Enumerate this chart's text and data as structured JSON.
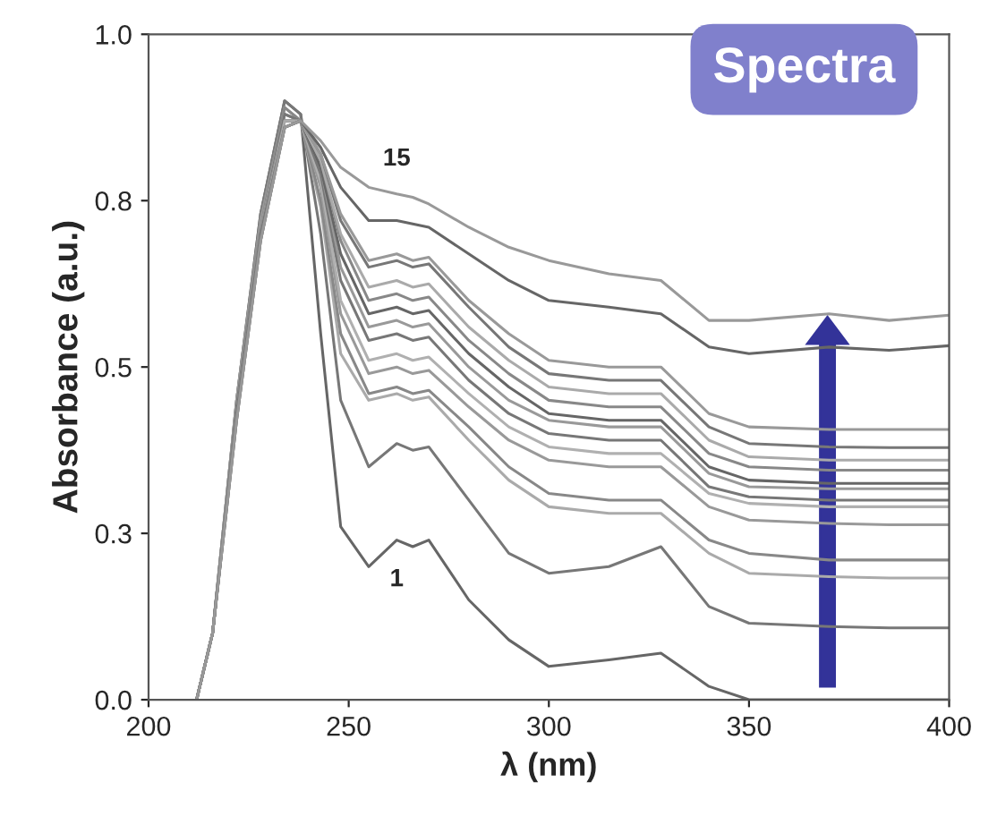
{
  "chart_data": {
    "type": "line",
    "xlabel": "λ (nm)",
    "ylabel": "Absorbance (a.u.)",
    "xlim": [
      200,
      400
    ],
    "xticks": [
      200,
      250,
      300,
      350,
      400
    ],
    "ylim": [
      0,
      1.0
    ],
    "yticks": [
      {
        "value": 0,
        "label": "0.0"
      },
      {
        "value": 0.25,
        "label": "0.3"
      },
      {
        "value": 0.5,
        "label": "0.5"
      },
      {
        "value": 0.75,
        "label": "0.8"
      },
      {
        "value": 1.0,
        "label": "1.0"
      }
    ],
    "grid": false,
    "legend": false,
    "marker": "none",
    "line_style": "solid",
    "x": [
      212,
      216,
      222,
      228,
      234,
      238,
      243,
      248,
      255,
      262,
      266,
      270,
      280,
      290,
      300,
      315,
      328,
      340,
      350,
      370,
      385,
      400
    ],
    "series": [
      {
        "color": "#666666",
        "values": [
          0,
          0.1,
          0.45,
          0.73,
          0.9,
          0.88,
          0.55,
          0.26,
          0.2,
          0.24,
          0.23,
          0.24,
          0.15,
          0.09,
          0.05,
          0.06,
          0.07,
          0.02,
          0.0,
          0.0,
          0.0,
          0.0
        ]
      },
      {
        "color": "#777777",
        "values": [
          0,
          0.1,
          0.45,
          0.73,
          0.9,
          0.88,
          0.7,
          0.45,
          0.35,
          0.385,
          0.375,
          0.38,
          0.3,
          0.22,
          0.19,
          0.2,
          0.23,
          0.14,
          0.115,
          0.11,
          0.108,
          0.108
        ]
      },
      {
        "color": "#aaaaaa",
        "values": [
          0,
          0.1,
          0.45,
          0.72,
          0.89,
          0.87,
          0.74,
          0.52,
          0.45,
          0.46,
          0.45,
          0.455,
          0.39,
          0.33,
          0.29,
          0.28,
          0.28,
          0.22,
          0.19,
          0.185,
          0.183,
          0.183
        ]
      },
      {
        "color": "#888888",
        "values": [
          0,
          0.1,
          0.44,
          0.72,
          0.89,
          0.87,
          0.75,
          0.55,
          0.46,
          0.47,
          0.46,
          0.465,
          0.41,
          0.35,
          0.31,
          0.3,
          0.3,
          0.24,
          0.22,
          0.21,
          0.21,
          0.21
        ]
      },
      {
        "color": "#999999",
        "values": [
          0,
          0.1,
          0.44,
          0.72,
          0.88,
          0.87,
          0.77,
          0.58,
          0.49,
          0.5,
          0.49,
          0.495,
          0.44,
          0.39,
          0.36,
          0.35,
          0.35,
          0.29,
          0.27,
          0.265,
          0.263,
          0.263
        ]
      },
      {
        "color": "#b0b0b0",
        "values": [
          0,
          0.1,
          0.44,
          0.71,
          0.88,
          0.87,
          0.78,
          0.6,
          0.51,
          0.52,
          0.51,
          0.515,
          0.46,
          0.41,
          0.38,
          0.37,
          0.37,
          0.31,
          0.295,
          0.29,
          0.29,
          0.29
        ]
      },
      {
        "color": "#777777",
        "values": [
          0,
          0.1,
          0.44,
          0.71,
          0.88,
          0.87,
          0.79,
          0.63,
          0.54,
          0.55,
          0.54,
          0.545,
          0.48,
          0.43,
          0.4,
          0.39,
          0.39,
          0.32,
          0.305,
          0.3,
          0.3,
          0.3
        ]
      },
      {
        "color": "#999999",
        "values": [
          0,
          0.1,
          0.43,
          0.71,
          0.87,
          0.87,
          0.8,
          0.65,
          0.56,
          0.57,
          0.56,
          0.565,
          0.5,
          0.45,
          0.42,
          0.41,
          0.41,
          0.34,
          0.32,
          0.317,
          0.317,
          0.317
        ]
      },
      {
        "color": "#666666",
        "values": [
          0,
          0.1,
          0.43,
          0.7,
          0.87,
          0.87,
          0.8,
          0.67,
          0.58,
          0.59,
          0.58,
          0.585,
          0.52,
          0.47,
          0.43,
          0.42,
          0.42,
          0.35,
          0.33,
          0.325,
          0.325,
          0.325
        ]
      },
      {
        "color": "#888888",
        "values": [
          0,
          0.1,
          0.43,
          0.7,
          0.87,
          0.87,
          0.81,
          0.69,
          0.6,
          0.61,
          0.6,
          0.605,
          0.54,
          0.49,
          0.45,
          0.44,
          0.44,
          0.37,
          0.35,
          0.345,
          0.345,
          0.345
        ]
      },
      {
        "color": "#aaaaaa",
        "values": [
          0,
          0.1,
          0.43,
          0.7,
          0.87,
          0.87,
          0.81,
          0.7,
          0.62,
          0.63,
          0.62,
          0.625,
          0.56,
          0.51,
          0.47,
          0.46,
          0.46,
          0.39,
          0.365,
          0.36,
          0.36,
          0.36
        ]
      },
      {
        "color": "#777777",
        "values": [
          0,
          0.1,
          0.43,
          0.7,
          0.86,
          0.87,
          0.82,
          0.72,
          0.65,
          0.66,
          0.65,
          0.655,
          0.59,
          0.53,
          0.49,
          0.48,
          0.48,
          0.41,
          0.385,
          0.38,
          0.379,
          0.379
        ]
      },
      {
        "color": "#999999",
        "values": [
          0,
          0.1,
          0.42,
          0.69,
          0.86,
          0.87,
          0.82,
          0.73,
          0.66,
          0.67,
          0.66,
          0.665,
          0.6,
          0.55,
          0.51,
          0.5,
          0.5,
          0.43,
          0.41,
          0.406,
          0.406,
          0.406
        ]
      },
      {
        "color": "#666666",
        "values": [
          0,
          0.1,
          0.42,
          0.69,
          0.86,
          0.87,
          0.83,
          0.77,
          0.72,
          0.72,
          0.715,
          0.71,
          0.67,
          0.63,
          0.6,
          0.59,
          0.58,
          0.53,
          0.52,
          0.53,
          0.525,
          0.532
        ]
      },
      {
        "color": "#999999",
        "values": [
          0,
          0.1,
          0.42,
          0.69,
          0.86,
          0.87,
          0.84,
          0.8,
          0.77,
          0.76,
          0.755,
          0.745,
          0.71,
          0.68,
          0.66,
          0.64,
          0.63,
          0.57,
          0.57,
          0.58,
          0.57,
          0.578
        ]
      }
    ],
    "annotations": [
      "15",
      "1",
      "Spectra"
    ]
  }
}
